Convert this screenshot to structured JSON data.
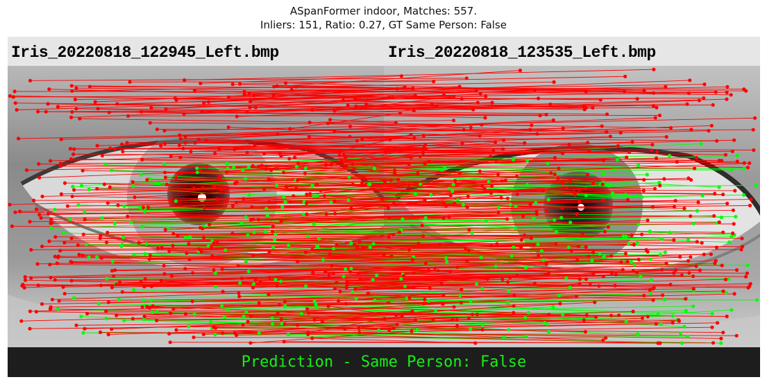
{
  "title": {
    "line1": "ASpanFormer indoor, Matches: 557.",
    "line2": "Inliers: 151, Ratio: 0.27, GT Same Person: False"
  },
  "images": {
    "left_filename": "Iris_20220818_122945_Left.bmp",
    "right_filename": "Iris_20220818_123535_Left.bmp"
  },
  "prediction": "Prediction - Same Person: False",
  "colors": {
    "inlier": "#00ff00",
    "outlier": "#ff0000",
    "banner": "#1d1d1d",
    "header": "#e6e6e6"
  },
  "stats": {
    "matches": 557,
    "inliers": 151
  }
}
